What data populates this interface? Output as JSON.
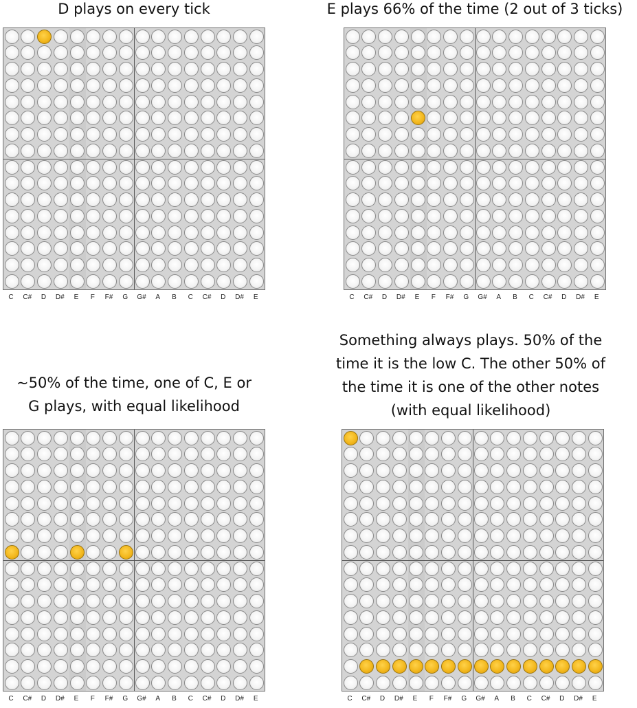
{
  "note_names": [
    "C",
    "C#",
    "D",
    "D#",
    "E",
    "F",
    "F#",
    "G",
    "G#",
    "A",
    "B",
    "C",
    "C#",
    "D",
    "D#",
    "E"
  ],
  "panels": [
    {
      "caption": [
        "D plays on every tick"
      ],
      "active": [
        [
          0,
          2
        ]
      ]
    },
    {
      "caption": [
        "E plays 66% of the time (2 out of 3 ticks)"
      ],
      "active": [
        [
          5,
          4
        ]
      ]
    },
    {
      "caption": [
        "~50% of the time, one of C, E or",
        "G plays, with equal likelihood"
      ],
      "active": [
        [
          7,
          0
        ],
        [
          7,
          4
        ],
        [
          7,
          7
        ]
      ]
    },
    {
      "caption": [
        "Something always plays. 50% of the",
        "time it is the low C. The other 50% of",
        "the time it is one of the other notes",
        "(with equal likelihood)"
      ],
      "active": [
        [
          0,
          0
        ],
        [
          14,
          1
        ],
        [
          14,
          2
        ],
        [
          14,
          3
        ],
        [
          14,
          4
        ],
        [
          14,
          5
        ],
        [
          14,
          6
        ],
        [
          14,
          7
        ],
        [
          14,
          8
        ],
        [
          14,
          9
        ],
        [
          14,
          10
        ],
        [
          14,
          11
        ],
        [
          14,
          12
        ],
        [
          14,
          13
        ],
        [
          14,
          14
        ],
        [
          14,
          15
        ]
      ]
    }
  ]
}
